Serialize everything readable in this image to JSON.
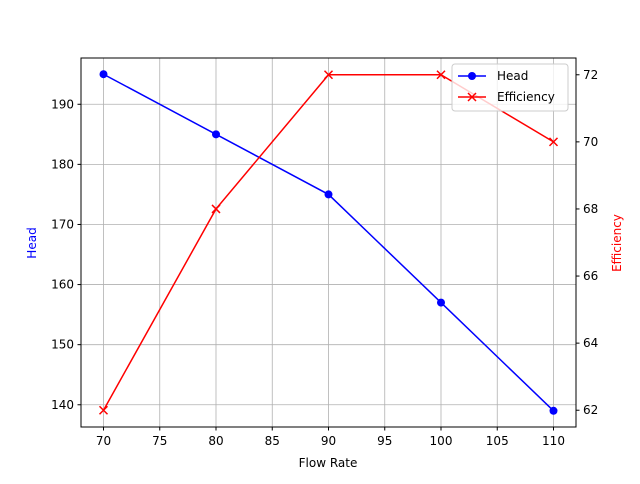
{
  "chart_data": {
    "type": "line",
    "title": "",
    "xlabel": "Flow Rate",
    "ylabel": "Head",
    "ylabel_right": "Efficiency",
    "x": [
      70,
      80,
      90,
      100,
      110
    ],
    "series": [
      {
        "name": "Head",
        "axis": "left",
        "color": "#0000ff",
        "marker": "o",
        "values": [
          195,
          185,
          175,
          157,
          139
        ]
      },
      {
        "name": "Efficiency",
        "axis": "right",
        "color": "#ff0000",
        "marker": "x",
        "values": [
          62,
          68,
          72,
          72,
          70
        ]
      }
    ],
    "xticks": [
      70,
      75,
      80,
      85,
      90,
      95,
      100,
      105,
      110
    ],
    "yticks_left": [
      140,
      150,
      160,
      170,
      180,
      190
    ],
    "yticks_right": [
      62,
      64,
      66,
      68,
      70,
      72
    ],
    "xlim": [
      68,
      112
    ],
    "ylim_left": [
      136.3,
      197.7
    ],
    "ylim_right": [
      61.5,
      72.5
    ],
    "grid": true,
    "legend_position": "upper right"
  }
}
